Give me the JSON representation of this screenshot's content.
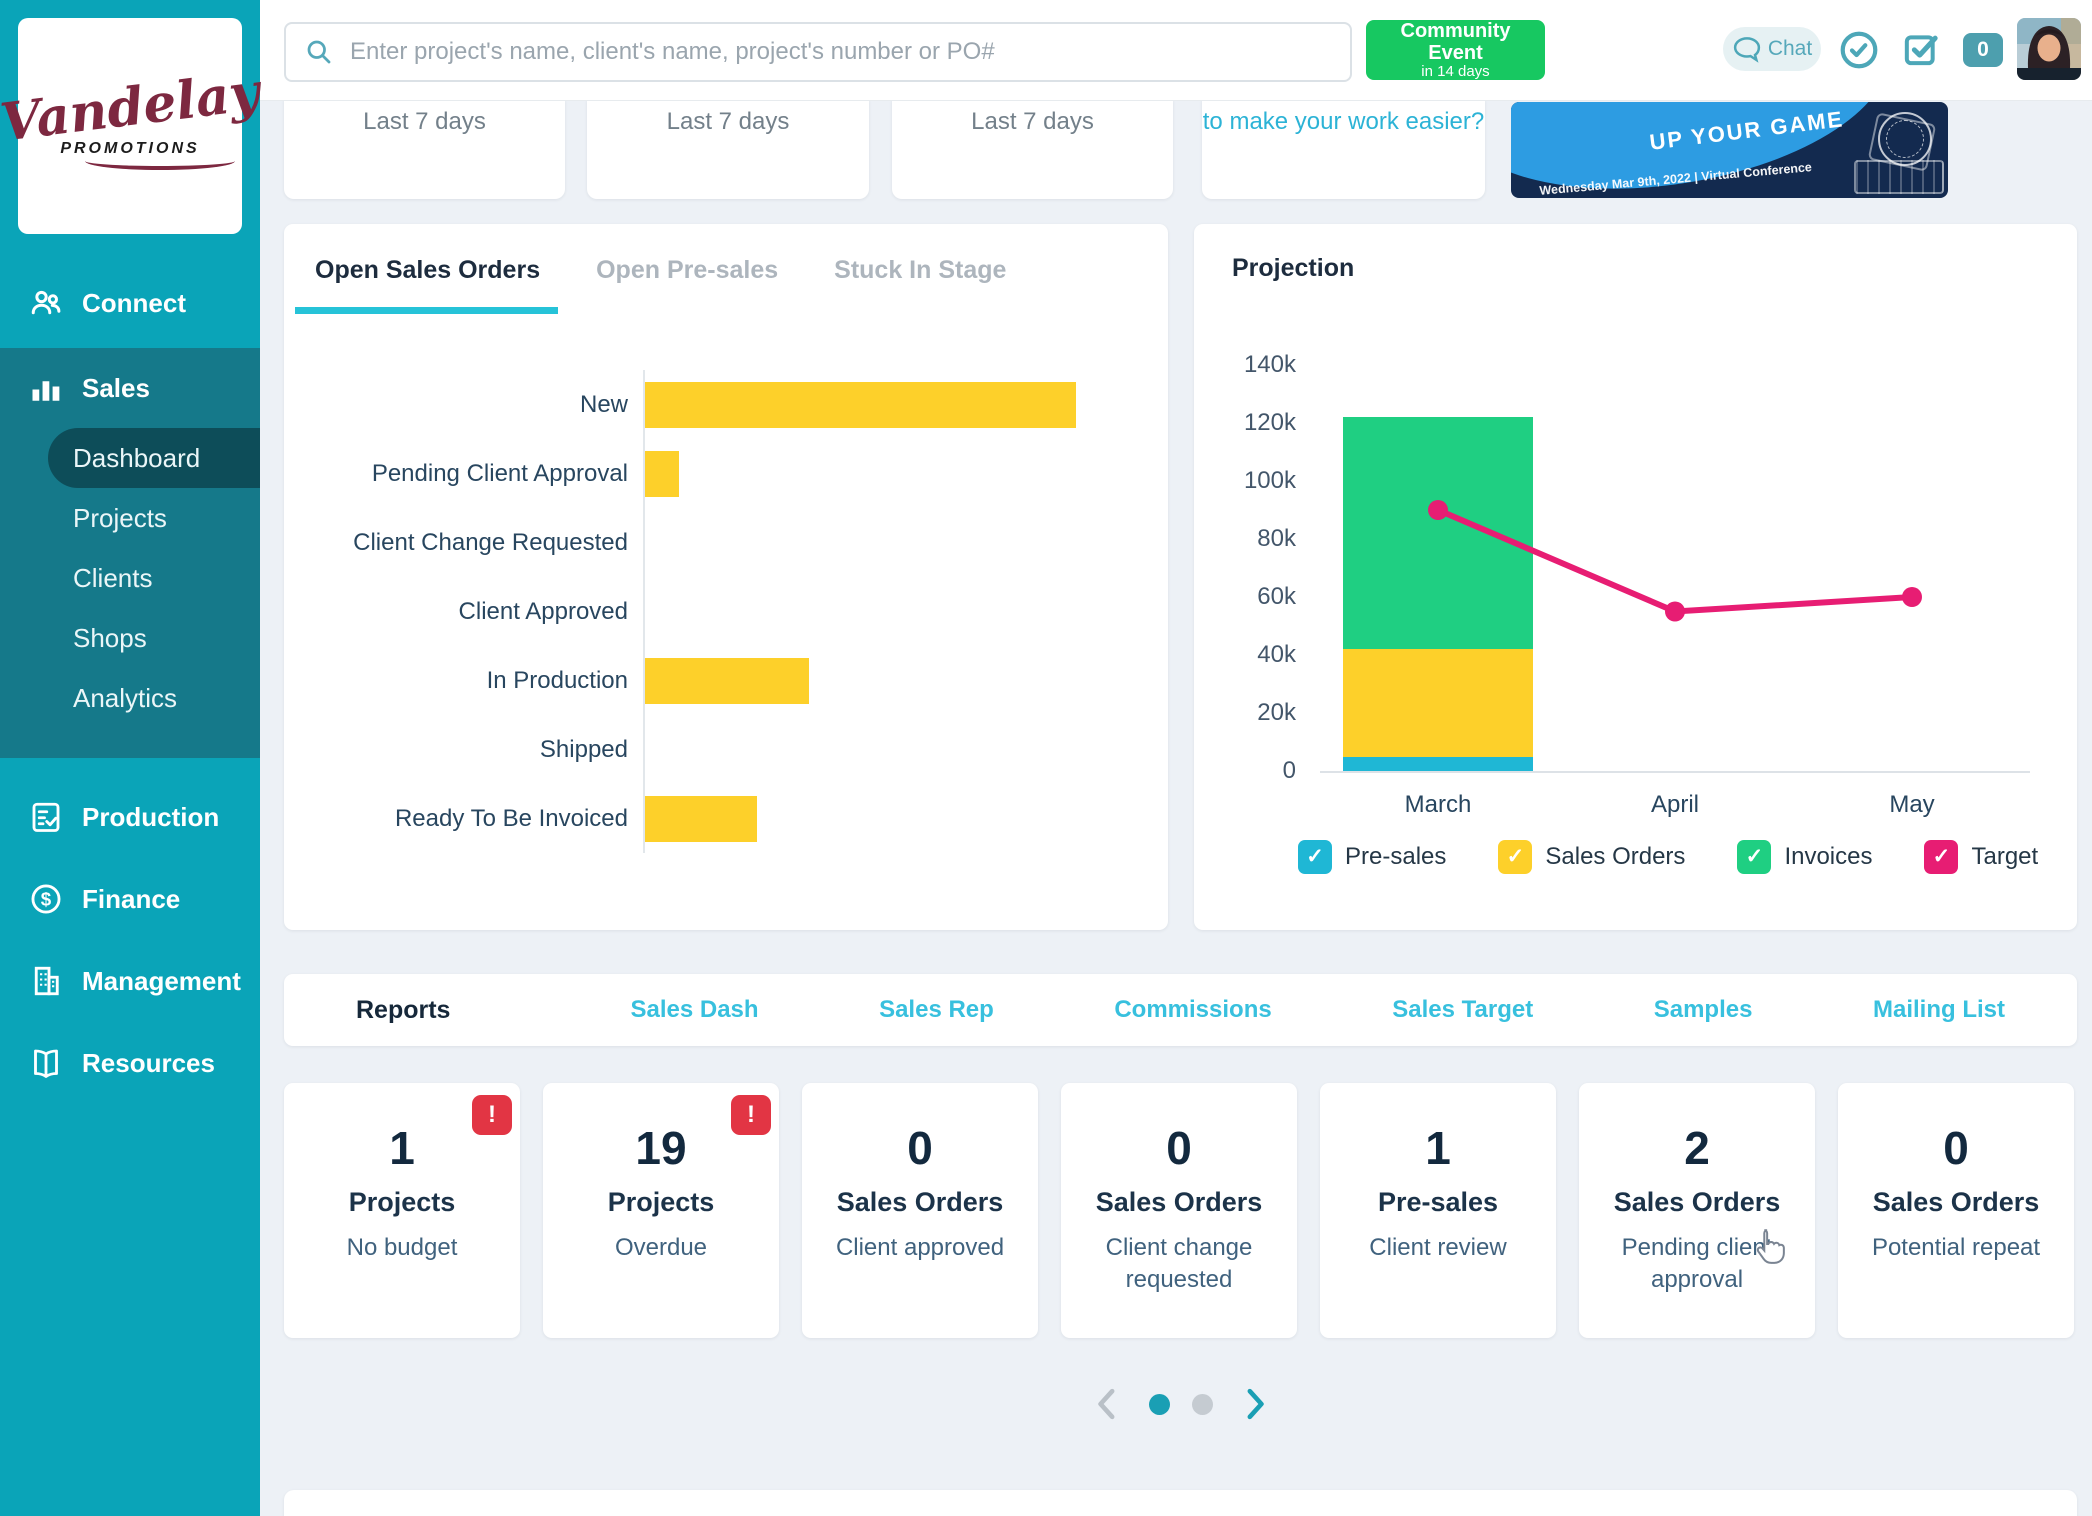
{
  "brand": {
    "script": "Vandelay",
    "sub": "PROMOTIONS"
  },
  "topbar": {
    "search_placeholder": "Enter project's name, client's name, project's number or PO#",
    "event_button": {
      "line1": "Community Event",
      "line2": "in 14 days"
    },
    "chat_label": "Chat",
    "notification_count": "0"
  },
  "sidebar": {
    "items": [
      {
        "label": "Connect",
        "icon": "people-icon"
      },
      {
        "label": "Sales",
        "icon": "bar-chart-icon",
        "active": true,
        "children": [
          {
            "label": "Dashboard",
            "active": true
          },
          {
            "label": "Projects",
            "active": false
          },
          {
            "label": "Clients",
            "active": false
          },
          {
            "label": "Shops",
            "active": false
          },
          {
            "label": "Analytics",
            "active": false
          }
        ]
      },
      {
        "label": "Production",
        "icon": "clipboard-check-icon"
      },
      {
        "label": "Finance",
        "icon": "dollar-circle-icon"
      },
      {
        "label": "Management",
        "icon": "building-icon"
      },
      {
        "label": "Resources",
        "icon": "book-icon"
      }
    ]
  },
  "summary_cards": [
    {
      "text": "Last 7 days",
      "accent": false
    },
    {
      "text": "Last 7 days",
      "accent": false
    },
    {
      "text": "Last 7 days",
      "accent": false
    },
    {
      "text": "to make your work easier?",
      "accent": true
    }
  ],
  "banner": {
    "headline": "UP YOUR GAME",
    "date_line": "Wednesday Mar 9th, 2022 | Virtual Conference"
  },
  "sales_panel": {
    "tabs": [
      {
        "label": "Open Sales Orders",
        "active": true
      },
      {
        "label": "Open Pre-sales",
        "active": false
      },
      {
        "label": "Stuck In Stage",
        "active": false
      }
    ]
  },
  "projection_panel": {
    "title": "Projection"
  },
  "reports_bar": {
    "title": "Reports",
    "links": [
      "Sales Dash",
      "Sales Rep",
      "Commissions",
      "Sales Target",
      "Samples",
      "Mailing List"
    ]
  },
  "stat_cards": [
    {
      "value": "1",
      "label": "Projects",
      "sublabel": "No budget",
      "alert": true
    },
    {
      "value": "19",
      "label": "Projects",
      "sublabel": "Overdue",
      "alert": true
    },
    {
      "value": "0",
      "label": "Sales Orders",
      "sublabel": "Client approved",
      "alert": false
    },
    {
      "value": "0",
      "label": "Sales Orders",
      "sublabel": "Client change requested",
      "alert": false
    },
    {
      "value": "1",
      "label": "Pre-sales",
      "sublabel": "Client review",
      "alert": false
    },
    {
      "value": "2",
      "label": "Sales Orders",
      "sublabel": "Pending client approval",
      "alert": false
    },
    {
      "value": "0",
      "label": "Sales Orders",
      "sublabel": "Potential repeat",
      "alert": false
    }
  ],
  "pagination": {
    "dots": [
      {
        "active": true
      },
      {
        "active": false
      }
    ]
  },
  "colors": {
    "sidebar_teal": "#0aa4b8",
    "sidebar_section_teal": "#15798a",
    "sidebar_active_pill": "#0d4d59",
    "accent_cyan": "#26c3d8",
    "link_cyan": "#38c0de",
    "button_green": "#17c861",
    "bar_yellow": "#fdd02a",
    "chart_green": "#1fcf82",
    "chart_blue": "#1fb7d5",
    "target_pink": "#e71d73",
    "alert_red": "#e23544",
    "page_bg": "#edf1f6",
    "text_navy": "#1f3449"
  },
  "chart_data": [
    {
      "type": "bar",
      "orientation": "horizontal",
      "panel": "Open Sales Orders",
      "categories": [
        "New",
        "Pending Client Approval",
        "Client Change Requested",
        "Client Approved",
        "In Production",
        "Shipped",
        "Ready To Be Invoiced"
      ],
      "values": [
        100,
        8,
        0,
        0,
        38,
        0,
        26
      ],
      "value_note": "axis unlabeled; values estimated as percent of longest bar",
      "bar_color": "#fdd02a",
      "grid": false
    },
    {
      "type": "combo",
      "panel": "Projection",
      "categories": [
        "March",
        "April",
        "May"
      ],
      "stacked_bars": {
        "series": [
          {
            "name": "Pre-sales",
            "color": "#1fb7d5",
            "values": [
              5000,
              0,
              0
            ]
          },
          {
            "name": "Sales Orders",
            "color": "#fdd02a",
            "values": [
              37000,
              0,
              0
            ]
          },
          {
            "name": "Invoices",
            "color": "#1fcf82",
            "values": [
              80000,
              0,
              0
            ]
          }
        ]
      },
      "line": {
        "name": "Target",
        "color": "#e71d73",
        "values": [
          90000,
          55000,
          60000
        ]
      },
      "ylim": [
        0,
        140000
      ],
      "yticks": [
        "0",
        "20k",
        "40k",
        "60k",
        "80k",
        "100k",
        "120k",
        "140k"
      ],
      "legend": [
        {
          "label": "Pre-sales",
          "color": "#1fb7d5"
        },
        {
          "label": "Sales Orders",
          "color": "#fdd02a"
        },
        {
          "label": "Invoices",
          "color": "#1fcf82"
        },
        {
          "label": "Target",
          "color": "#e71d73"
        }
      ],
      "legend_position": "bottom",
      "values_estimated": true
    }
  ]
}
